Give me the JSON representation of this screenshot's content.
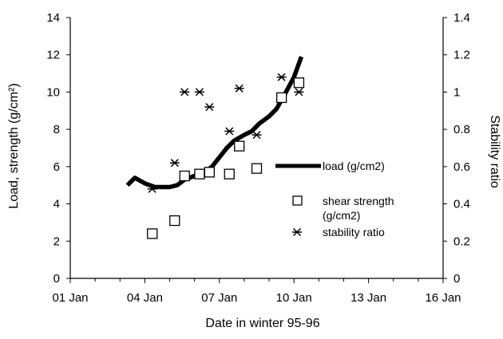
{
  "chart_data": {
    "type": "line",
    "xlabel": "Date in winter 95-96",
    "ylabel_left": "Load, strength  (g/cm²)",
    "ylabel_right": "Stability ratio",
    "x_ticks": [
      "01 Jan",
      "04 Jan",
      "07 Jan",
      "10 Jan",
      "13 Jan",
      "16 Jan"
    ],
    "x_tick_values": [
      1,
      4,
      7,
      10,
      13,
      16
    ],
    "xlim": [
      1,
      16
    ],
    "ylim_left": [
      0,
      14
    ],
    "ylim_right": [
      0,
      1.4
    ],
    "y_ticks_left": [
      "0",
      "2",
      "4",
      "6",
      "8",
      "10",
      "12",
      "14"
    ],
    "y_ticks_right": [
      "0",
      "0.2",
      "0.4",
      "0.6",
      "0.8",
      "1",
      "1.2",
      "1.4"
    ],
    "grid": false,
    "legend_position": "center-right",
    "series": [
      {
        "name": "load (g/cm2)",
        "type": "line",
        "axis": "left",
        "color": "#000000",
        "x": [
          3.3,
          3.6,
          4.0,
          4.4,
          5.0,
          5.3,
          5.6,
          6.0,
          6.3,
          6.7,
          7.0,
          7.3,
          7.6,
          8.0,
          8.3,
          8.6,
          9.0,
          9.3,
          9.6,
          10.0,
          10.3
        ],
        "y": [
          5.0,
          5.4,
          5.1,
          4.9,
          4.9,
          5.0,
          5.3,
          5.5,
          5.6,
          6.0,
          6.5,
          7.0,
          7.4,
          7.7,
          7.9,
          8.3,
          8.7,
          9.1,
          9.8,
          10.8,
          11.9
        ]
      },
      {
        "name": "shear strength (g/cm2)",
        "type": "scatter",
        "marker": "square",
        "axis": "left",
        "color": "#000000",
        "x": [
          4.3,
          5.2,
          5.6,
          6.2,
          6.6,
          7.4,
          7.8,
          8.5,
          9.5,
          10.2
        ],
        "y": [
          2.4,
          3.1,
          5.5,
          5.6,
          5.7,
          5.6,
          7.1,
          5.9,
          9.7,
          10.5
        ]
      },
      {
        "name": "stability ratio",
        "type": "scatter",
        "marker": "asterisk",
        "axis": "right",
        "color": "#000000",
        "x": [
          4.3,
          5.2,
          5.6,
          6.2,
          6.6,
          7.4,
          7.8,
          8.5,
          9.5,
          10.2
        ],
        "y": [
          0.48,
          0.62,
          1.0,
          1.0,
          0.92,
          0.79,
          1.02,
          0.77,
          1.08,
          1.0
        ]
      }
    ]
  }
}
